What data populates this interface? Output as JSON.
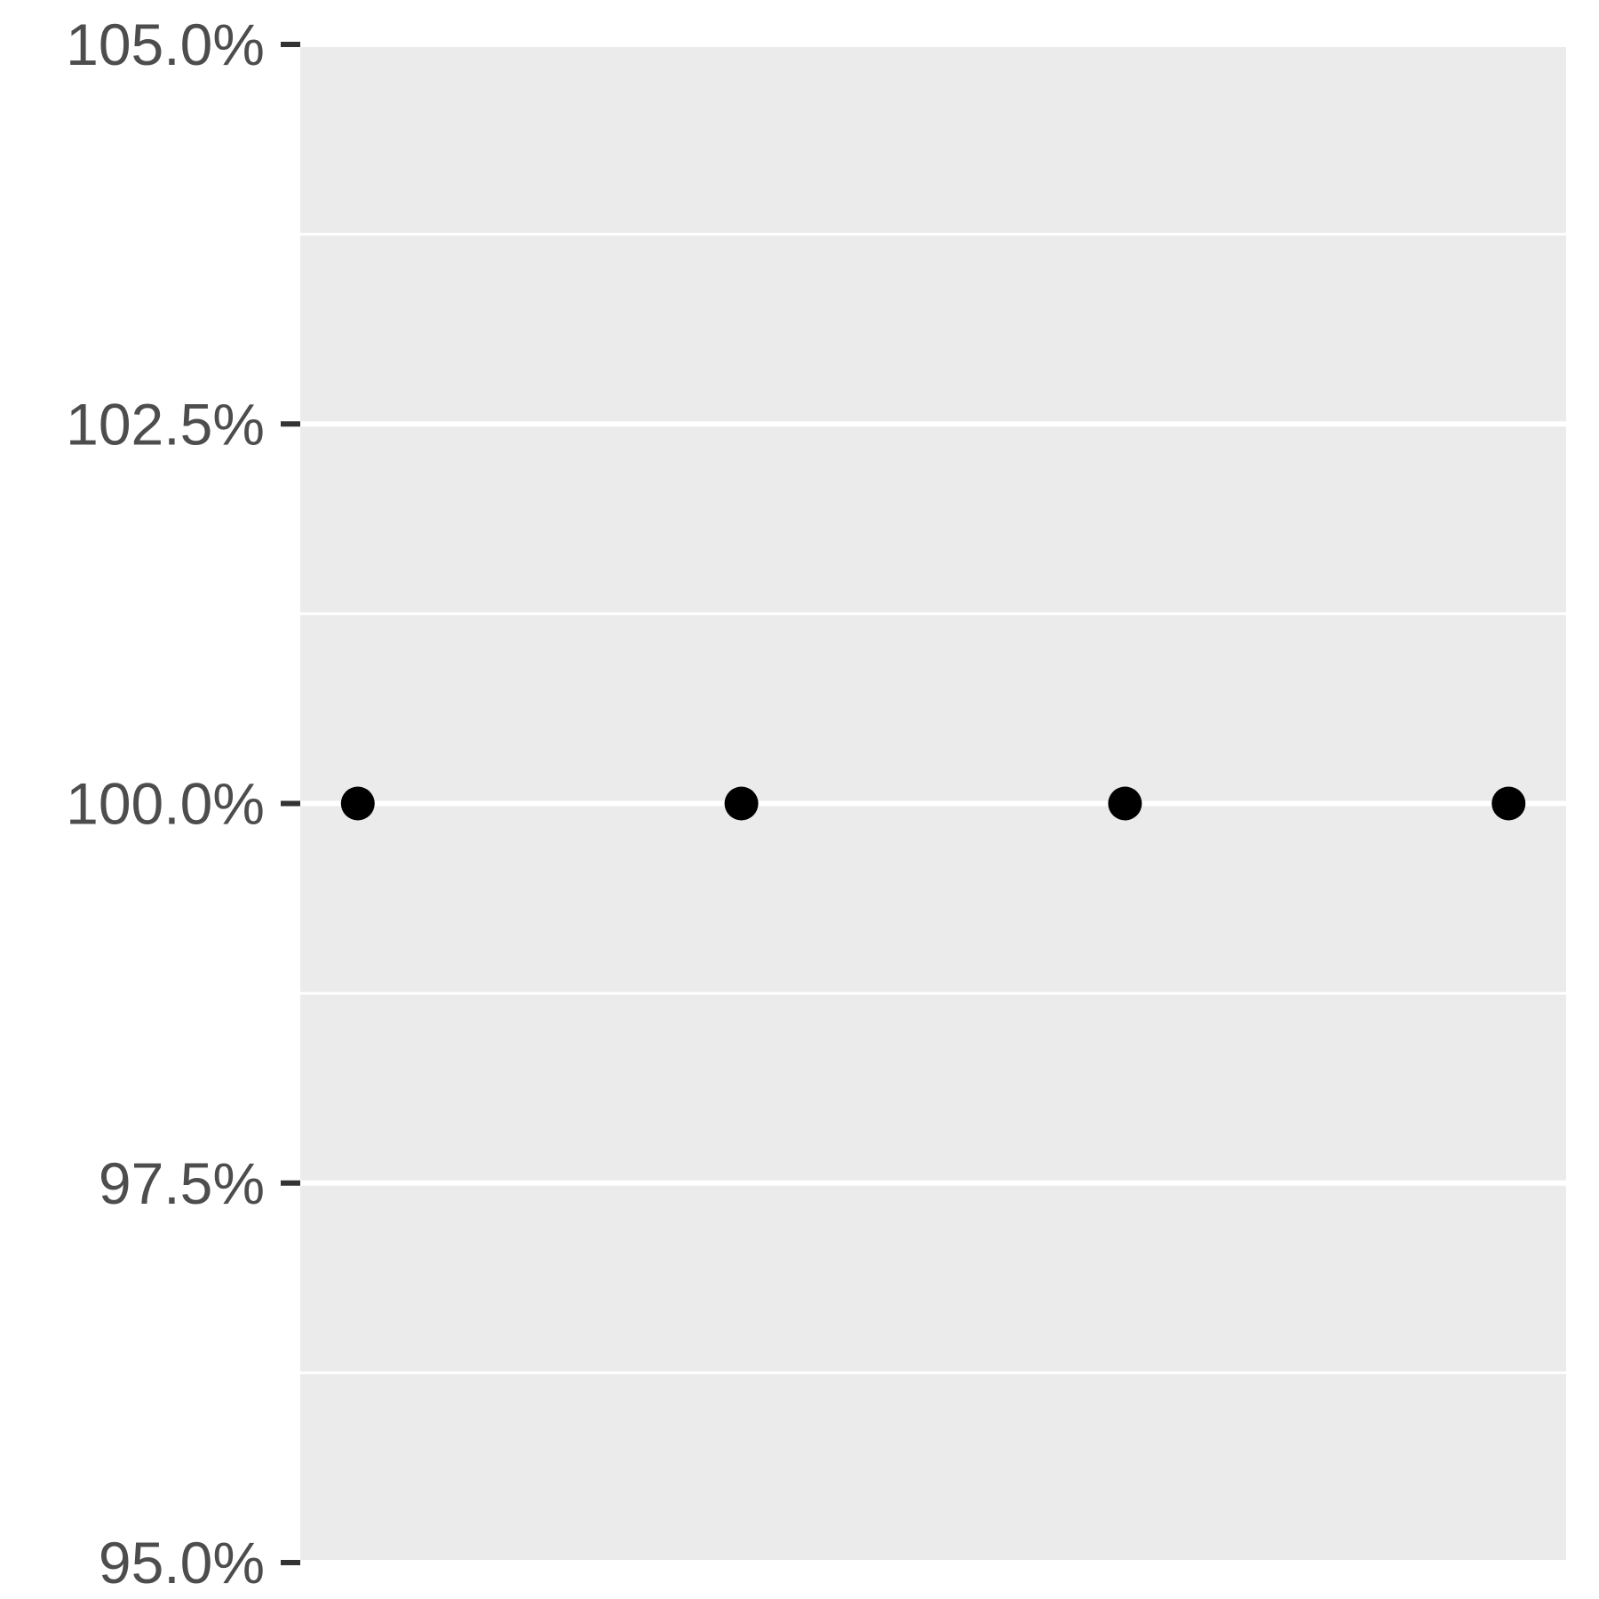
{
  "chart_data": {
    "type": "scatter",
    "title": "",
    "xlabel": "",
    "ylabel": "",
    "y_tick_labels": [
      "95.0%",
      "97.5%",
      "100.0%",
      "102.5%",
      "105.0%"
    ],
    "y_ticks": [
      95.0,
      97.5,
      100.0,
      102.5,
      105.0
    ],
    "ylim": [
      95.0,
      105.0
    ],
    "x_ticks_shown": false,
    "grid": true,
    "legend": "none",
    "panel_background": "#ebebeb",
    "grid_color": "#ffffff",
    "point_color": "#000000",
    "tick_color": "#333333",
    "points": [
      {
        "x": 1,
        "y": 100.0
      },
      {
        "x": 2,
        "y": 100.0
      },
      {
        "x": 3,
        "y": 100.0
      },
      {
        "x": 4,
        "y": 100.0
      }
    ]
  }
}
